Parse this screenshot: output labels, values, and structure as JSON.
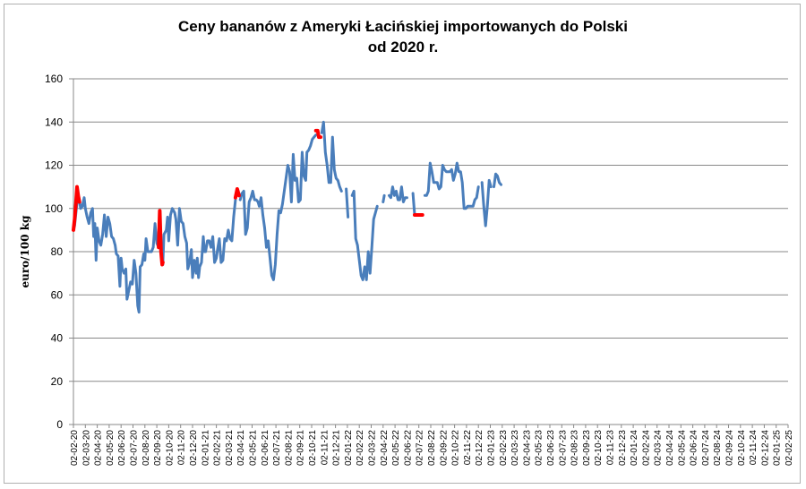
{
  "chart_data": {
    "type": "line",
    "title_line1": "Ceny bananów z Ameryki Łacińskiej importowanych do Polski",
    "title_line2": "od 2020 r.",
    "ylabel": "euro/100 kg",
    "ylim": [
      0,
      160
    ],
    "yticks": [
      0,
      20,
      40,
      60,
      80,
      100,
      120,
      140,
      160
    ],
    "grid": true,
    "x_labels": [
      "02-02-20",
      "02-03-20",
      "02-04-20",
      "02-05-20",
      "02-06-20",
      "02-07-20",
      "02-08-20",
      "02-09-20",
      "02-10-20",
      "02-11-20",
      "02-12-20",
      "02-01-21",
      "02-02-21",
      "02-03-21",
      "02-04-21",
      "02-05-21",
      "02-06-21",
      "02-07-21",
      "02-08-21",
      "02-09-21",
      "02-10-21",
      "02-11-21",
      "02-12-21",
      "02-01-22",
      "02-02-22",
      "02-03-22",
      "02-04-22",
      "02-05-22",
      "02-06-22",
      "02-07-22",
      "02-08-22",
      "02-09-22",
      "02-10-22",
      "02-11-22",
      "02-12-22",
      "02-01-23",
      "02-02-23",
      "02-03-23",
      "02-04-23",
      "02-05-23",
      "02-06-23",
      "02-07-23",
      "02-08-23",
      "02-09-23",
      "02-10-23",
      "02-11-23",
      "02-12-23",
      "02-01-24",
      "02-02-24",
      "02-03-24",
      "02-04-24",
      "02-05-24",
      "02-06-24",
      "02-07-24",
      "02-08-24",
      "02-09-24",
      "02-10-24",
      "02-11-24",
      "02-12-24",
      "02-01-25",
      "02-02-25"
    ],
    "series": [
      {
        "color": "#4a7ebb",
        "segments": [
          [
            [
              0,
              90
            ],
            [
              0.1,
              92
            ],
            [
              0.25,
              100
            ],
            [
              0.4,
              106
            ],
            [
              0.5,
              104
            ],
            [
              0.6,
              100
            ],
            [
              0.75,
              101
            ],
            [
              0.9,
              105
            ],
            [
              1.0,
              100
            ],
            [
              1.15,
              96
            ],
            [
              1.3,
              93
            ],
            [
              1.45,
              98
            ],
            [
              1.6,
              100
            ],
            [
              1.7,
              87
            ],
            [
              1.8,
              93
            ],
            [
              1.9,
              76
            ],
            [
              2.0,
              91
            ],
            [
              2.15,
              85
            ],
            [
              2.3,
              83
            ],
            [
              2.45,
              88
            ],
            [
              2.6,
              97
            ],
            [
              2.75,
              87
            ],
            [
              2.9,
              96
            ],
            [
              3.05,
              93
            ],
            [
              3.2,
              87
            ],
            [
              3.35,
              86
            ],
            [
              3.5,
              83
            ],
            [
              3.6,
              79
            ],
            [
              3.75,
              78
            ],
            [
              3.9,
              64
            ],
            [
              4.0,
              77
            ],
            [
              4.1,
              72
            ],
            [
              4.25,
              70
            ],
            [
              4.4,
              72
            ],
            [
              4.5,
              58
            ],
            [
              4.65,
              62
            ],
            [
              4.8,
              66
            ],
            [
              4.95,
              65
            ],
            [
              5.1,
              76
            ],
            [
              5.25,
              70
            ],
            [
              5.4,
              55
            ],
            [
              5.5,
              52
            ],
            [
              5.6,
              73
            ],
            [
              5.75,
              74
            ],
            [
              5.9,
              79
            ],
            [
              6.0,
              76
            ],
            [
              6.1,
              86
            ],
            [
              6.25,
              80
            ],
            [
              6.4,
              80
            ],
            [
              6.55,
              80
            ],
            [
              6.7,
              82
            ],
            [
              6.85,
              93
            ],
            [
              7.0,
              84
            ],
            [
              7.15,
              82
            ]
          ],
          [
            [
              7.5,
              74
            ],
            [
              7.6,
              88
            ],
            [
              7.8,
              90
            ],
            [
              7.9,
              96
            ],
            [
              8.0,
              85
            ],
            [
              8.15,
              97
            ],
            [
              8.3,
              100
            ],
            [
              8.5,
              98
            ],
            [
              8.6,
              95
            ],
            [
              8.75,
              83
            ],
            [
              8.9,
              100
            ],
            [
              9.05,
              94
            ],
            [
              9.2,
              93
            ],
            [
              9.35,
              87
            ],
            [
              9.5,
              84
            ],
            [
              9.6,
              72
            ],
            [
              9.75,
              75
            ],
            [
              9.9,
              81
            ],
            [
              10.0,
              68
            ],
            [
              10.15,
              76
            ],
            [
              10.3,
              70
            ],
            [
              10.4,
              77
            ],
            [
              10.5,
              68
            ],
            [
              10.6,
              73
            ],
            [
              10.75,
              75
            ],
            [
              10.9,
              87
            ],
            [
              11.0,
              80
            ],
            [
              11.1,
              80
            ],
            [
              11.25,
              85
            ],
            [
              11.4,
              85
            ],
            [
              11.55,
              82
            ],
            [
              11.7,
              87
            ],
            [
              11.85,
              75
            ],
            [
              12.0,
              77
            ],
            [
              12.1,
              81
            ],
            [
              12.25,
              86
            ],
            [
              12.4,
              75
            ],
            [
              12.55,
              76
            ],
            [
              12.7,
              86
            ],
            [
              12.85,
              85
            ],
            [
              13.0,
              90
            ],
            [
              13.15,
              86
            ],
            [
              13.3,
              85
            ],
            [
              13.45,
              96
            ],
            [
              13.6,
              104
            ]
          ],
          [
            [
              14.0,
              104
            ],
            [
              14.15,
              107
            ],
            [
              14.3,
              108
            ],
            [
              14.45,
              88
            ],
            [
              14.6,
              91
            ],
            [
              14.75,
              103
            ],
            [
              14.9,
              105
            ],
            [
              15.05,
              108
            ],
            [
              15.2,
              104
            ],
            [
              15.35,
              104
            ],
            [
              15.5,
              103
            ],
            [
              15.6,
              101
            ],
            [
              15.75,
              105
            ],
            [
              15.9,
              97
            ],
            [
              16.05,
              91
            ],
            [
              16.2,
              82
            ],
            [
              16.35,
              85
            ],
            [
              16.5,
              77
            ],
            [
              16.65,
              69
            ],
            [
              16.8,
              67
            ],
            [
              16.95,
              74
            ],
            [
              17.1,
              88
            ],
            [
              17.25,
              99
            ],
            [
              17.4,
              98
            ],
            [
              17.55,
              102
            ],
            [
              17.7,
              108
            ],
            [
              17.85,
              114
            ],
            [
              18.0,
              120
            ],
            [
              18.15,
              117
            ],
            [
              18.3,
              103
            ],
            [
              18.45,
              125
            ],
            [
              18.6,
              113
            ],
            [
              18.75,
              114
            ],
            [
              18.9,
              103
            ],
            [
              19.05,
              104
            ],
            [
              19.2,
              126
            ],
            [
              19.35,
              115
            ],
            [
              19.5,
              113
            ],
            [
              19.6,
              126
            ],
            [
              19.75,
              127
            ],
            [
              19.9,
              129
            ],
            [
              20.05,
              132
            ],
            [
              20.2,
              133
            ],
            [
              20.35,
              134
            ]
          ],
          [
            [
              20.85,
              135
            ],
            [
              21.0,
              140
            ],
            [
              21.15,
              126
            ],
            [
              21.3,
              120
            ],
            [
              21.45,
              112
            ],
            [
              21.6,
              112
            ],
            [
              21.75,
              133
            ],
            [
              21.9,
              118
            ],
            [
              22.05,
              114
            ],
            [
              22.2,
              113
            ],
            [
              22.35,
              110
            ],
            [
              22.5,
              108
            ]
          ],
          [
            [
              22.9,
              109
            ],
            [
              23.05,
              96
            ]
          ],
          [
            [
              23.4,
              106
            ],
            [
              23.55,
              108
            ],
            [
              23.7,
              86
            ],
            [
              23.85,
              83
            ],
            [
              24.0,
              76
            ],
            [
              24.15,
              69
            ],
            [
              24.3,
              67
            ],
            [
              24.45,
              73
            ],
            [
              24.6,
              67
            ],
            [
              24.75,
              80
            ],
            [
              24.9,
              70
            ],
            [
              25.05,
              82
            ],
            [
              25.2,
              95
            ],
            [
              25.35,
              98
            ],
            [
              25.5,
              101
            ]
          ],
          [
            [
              26.0,
              103
            ],
            [
              26.1,
              106
            ]
          ],
          [
            [
              26.5,
              106
            ],
            [
              26.65,
              105
            ],
            [
              26.8,
              110
            ],
            [
              26.95,
              106
            ],
            [
              27.1,
              108
            ],
            [
              27.25,
              104
            ],
            [
              27.4,
              104
            ],
            [
              27.55,
              110
            ],
            [
              27.7,
              103
            ],
            [
              27.85,
              105
            ],
            [
              28.0,
              105
            ]
          ],
          [
            [
              28.5,
              107
            ],
            [
              28.65,
              97
            ]
          ],
          [
            [
              29.5,
              106
            ],
            [
              29.65,
              106
            ],
            [
              29.8,
              108
            ],
            [
              29.95,
              121
            ],
            [
              30.1,
              117
            ],
            [
              30.25,
              112
            ],
            [
              30.4,
              112
            ],
            [
              30.55,
              112
            ],
            [
              30.7,
              109
            ],
            [
              30.85,
              110
            ],
            [
              31.0,
              120
            ],
            [
              31.15,
              118
            ],
            [
              31.3,
              117
            ],
            [
              31.45,
              117
            ],
            [
              31.6,
              117
            ],
            [
              31.75,
              118
            ],
            [
              31.9,
              113
            ],
            [
              32.05,
              116
            ],
            [
              32.2,
              121
            ],
            [
              32.35,
              117
            ],
            [
              32.5,
              117
            ],
            [
              32.65,
              112
            ],
            [
              32.8,
              100
            ],
            [
              32.95,
              100
            ],
            [
              33.1,
              101
            ],
            [
              33.25,
              101
            ],
            [
              33.4,
              101
            ],
            [
              33.55,
              101
            ],
            [
              33.7,
              104
            ],
            [
              33.85,
              105
            ],
            [
              34.0,
              110
            ]
          ],
          [
            [
              34.3,
              112
            ],
            [
              34.45,
              101
            ],
            [
              34.6,
              92
            ],
            [
              34.75,
              101
            ],
            [
              34.9,
              113
            ],
            [
              35.05,
              110
            ]
          ],
          [
            [
              35.3,
              110
            ],
            [
              35.45,
              116
            ],
            [
              35.6,
              115
            ],
            [
              35.75,
              112
            ],
            [
              35.9,
              111
            ]
          ]
        ]
      },
      {
        "color": "#ff0000",
        "segments": [
          [
            [
              0,
              90
            ],
            [
              0.1,
              95
            ],
            [
              0.2,
              102
            ],
            [
              0.3,
              110
            ],
            [
              0.4,
              106
            ],
            [
              0.5,
              103
            ]
          ],
          [
            [
              7.15,
              82
            ],
            [
              7.25,
              99
            ],
            [
              7.35,
              80
            ],
            [
              7.45,
              74
            ],
            [
              7.5,
              75
            ]
          ],
          [
            [
              13.6,
              105
            ],
            [
              13.75,
              109
            ],
            [
              13.9,
              106
            ]
          ],
          [
            [
              20.35,
              136
            ],
            [
              20.5,
              136
            ],
            [
              20.6,
              133
            ],
            [
              20.75,
              133
            ]
          ],
          [
            [
              28.65,
              97
            ],
            [
              29.3,
              97
            ]
          ]
        ]
      }
    ]
  }
}
